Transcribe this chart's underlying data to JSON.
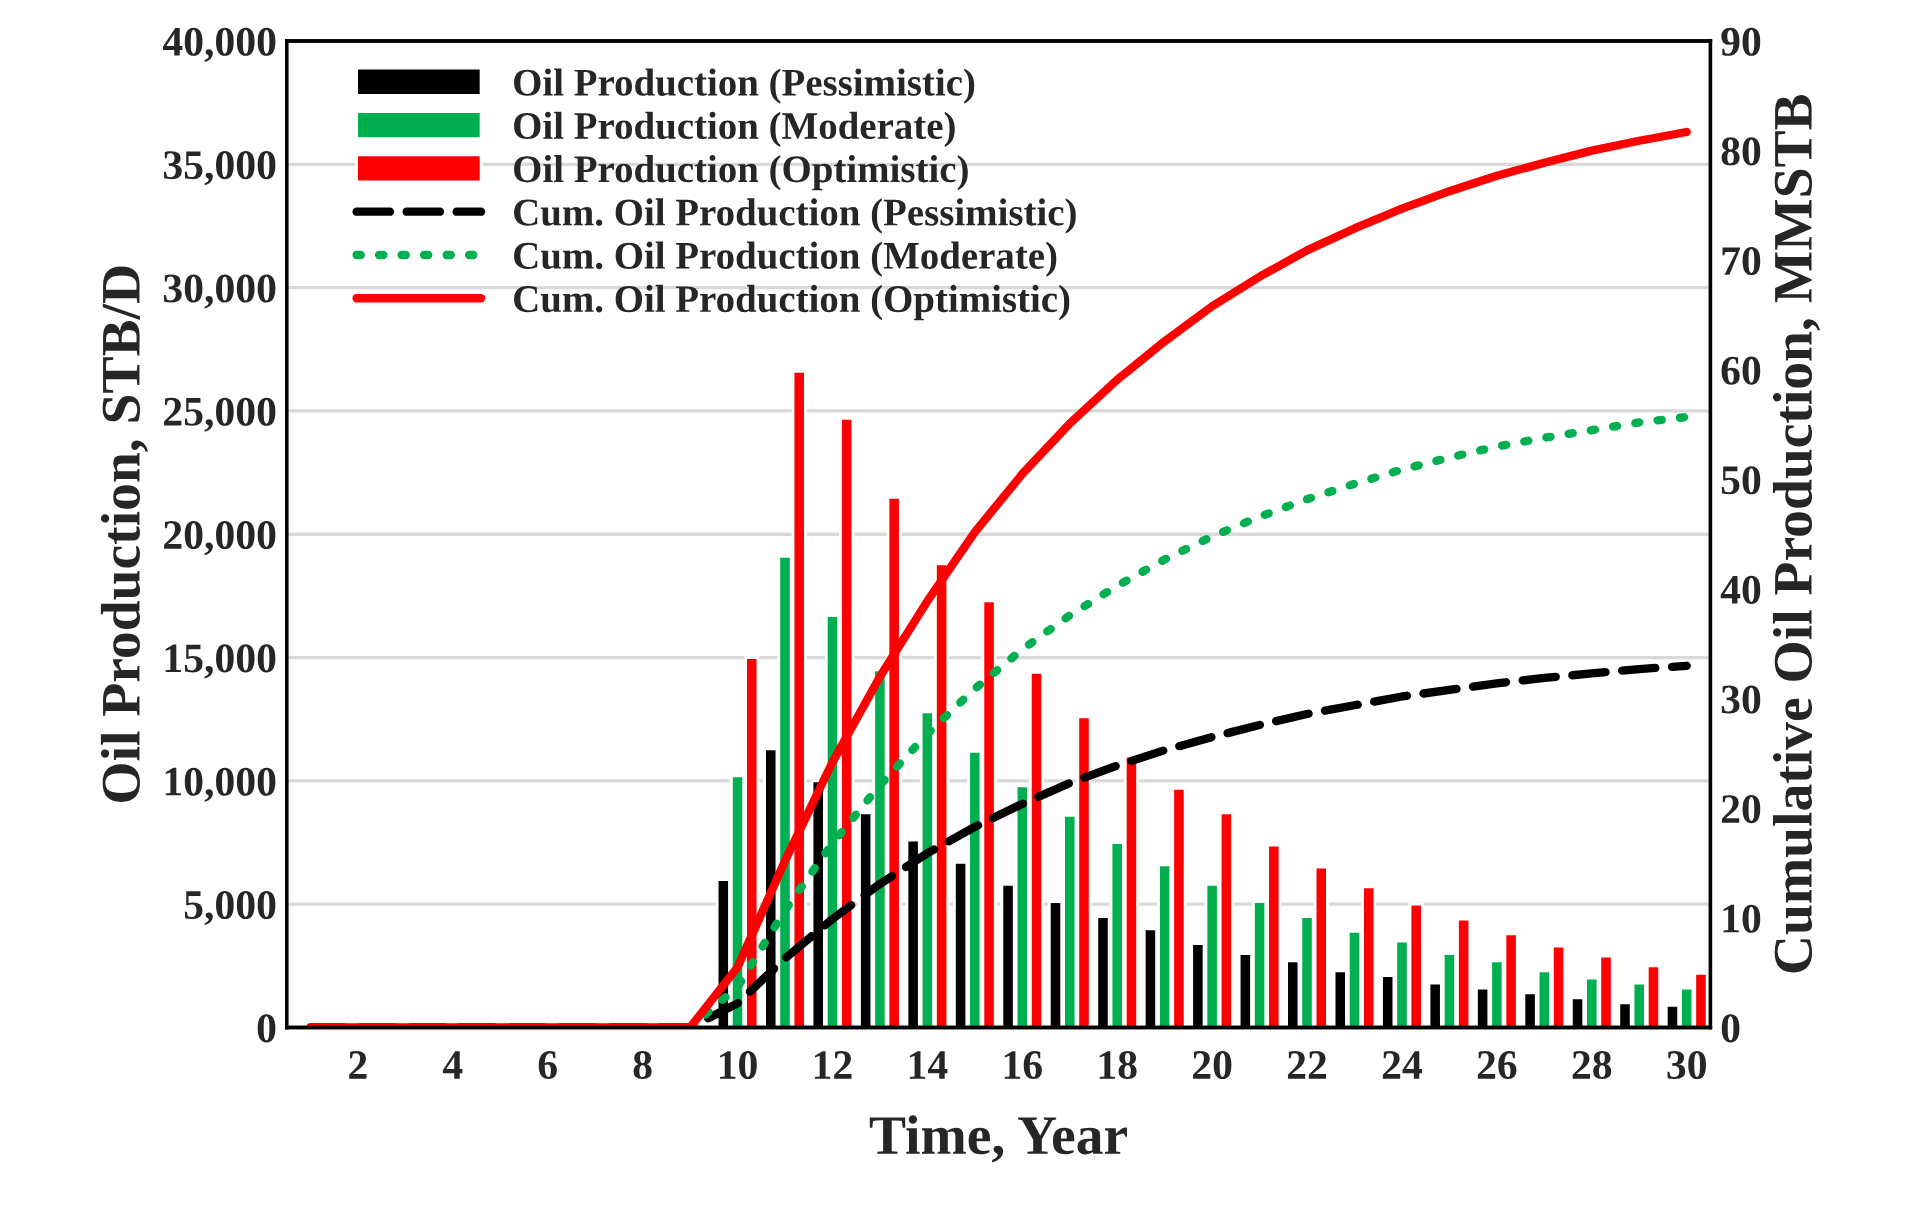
{
  "chart_data": {
    "type": "bar",
    "xlabel": "Time, Year",
    "ylabel": "Oil Production, STB/D",
    "y2label": "Cumulative Oil Production, MMSTB",
    "categories": [
      null,
      "2",
      null,
      "4",
      null,
      "6",
      null,
      "8",
      null,
      "10",
      null,
      "12",
      null,
      "14",
      null,
      "16",
      null,
      "18",
      null,
      "20",
      null,
      "22",
      null,
      "24",
      null,
      "26",
      null,
      "28",
      null,
      "30"
    ],
    "series": [
      {
        "name": "Oil Production (Pessimistic)",
        "color": "#000000",
        "values": [
          null,
          null,
          null,
          null,
          null,
          null,
          null,
          null,
          null,
          6000,
          11300,
          10000,
          8700,
          7600,
          6700,
          5800,
          5100,
          4500,
          4000,
          3400,
          3000,
          2700,
          2300,
          2100,
          1800,
          1600,
          1400,
          1200,
          1000,
          900
        ]
      },
      {
        "name": "Oil Production (Moderate)",
        "color": "#00b050",
        "values": [
          null,
          null,
          null,
          null,
          null,
          null,
          null,
          null,
          null,
          10200,
          19100,
          16700,
          14500,
          12800,
          11200,
          9800,
          8600,
          7500,
          6600,
          5800,
          5100,
          4500,
          3900,
          3500,
          3000,
          2700,
          2300,
          2000,
          1800,
          1600
        ]
      },
      {
        "name": "Oil Production (Optimistic)",
        "color": "#ff0000",
        "values": [
          null,
          null,
          null,
          null,
          null,
          null,
          null,
          null,
          null,
          15000,
          26600,
          24700,
          21500,
          18800,
          17300,
          14400,
          12600,
          11000,
          9700,
          8700,
          7400,
          6500,
          5700,
          5000,
          4400,
          3800,
          3300,
          2900,
          2500,
          2200
        ]
      },
      {
        "name": "Cum. Oil Production (Pessimistic)",
        "type": "line",
        "axis": "y2",
        "line_style": "dashed",
        "color": "#000000",
        "values": [
          0,
          0,
          0,
          0,
          0,
          0,
          0,
          0,
          0,
          2.2,
          6.3,
          9.9,
          13.1,
          15.9,
          18.3,
          20.4,
          22.3,
          23.9,
          25.3,
          26.5,
          27.6,
          28.6,
          29.4,
          30.2,
          30.8,
          31.4,
          31.9,
          32.3,
          32.7,
          33.0
        ]
      },
      {
        "name": "Cum. Oil Production (Moderate)",
        "type": "line",
        "axis": "y2",
        "line_style": "dotted",
        "color": "#00b050",
        "values": [
          null,
          null,
          null,
          null,
          null,
          null,
          null,
          0,
          0,
          3.7,
          10.7,
          16.8,
          22.1,
          26.8,
          30.9,
          34.5,
          37.6,
          40.3,
          42.7,
          44.8,
          46.6,
          48.2,
          49.6,
          50.9,
          52.0,
          53.0,
          53.8,
          54.5,
          55.2,
          55.7
        ]
      },
      {
        "name": "Cum. Oil Production (Optimistic)",
        "type": "line",
        "axis": "y2",
        "line_style": "solid",
        "color": "#ff0000",
        "values": [
          0,
          0,
          0,
          0,
          0,
          0,
          0,
          0,
          0,
          5.5,
          15.2,
          24.2,
          32.0,
          38.9,
          45.2,
          50.5,
          55.1,
          59.1,
          62.6,
          65.8,
          68.5,
          70.9,
          72.9,
          74.7,
          76.3,
          77.7,
          78.9,
          80.0,
          80.9,
          81.7
        ]
      }
    ],
    "ylim": [
      0,
      40000
    ],
    "yticks": [
      0,
      {
        "value": 5000,
        "label": "5,000"
      },
      {
        "value": 10000,
        "label": "10,000"
      },
      {
        "value": 15000,
        "label": "15,000"
      },
      {
        "value": 20000,
        "label": "20,000"
      },
      {
        "value": 25000,
        "label": "25,000"
      },
      {
        "value": 30000,
        "label": "30,000"
      },
      {
        "value": 35000,
        "label": "35,000"
      },
      {
        "value": 40000,
        "label": "40,000"
      }
    ],
    "y2lim": [
      0,
      90
    ],
    "y2ticks": [
      0,
      10,
      20,
      30,
      40,
      50,
      60,
      70,
      80,
      90
    ],
    "grid": "y",
    "legend": "top left",
    "marker": "none"
  }
}
